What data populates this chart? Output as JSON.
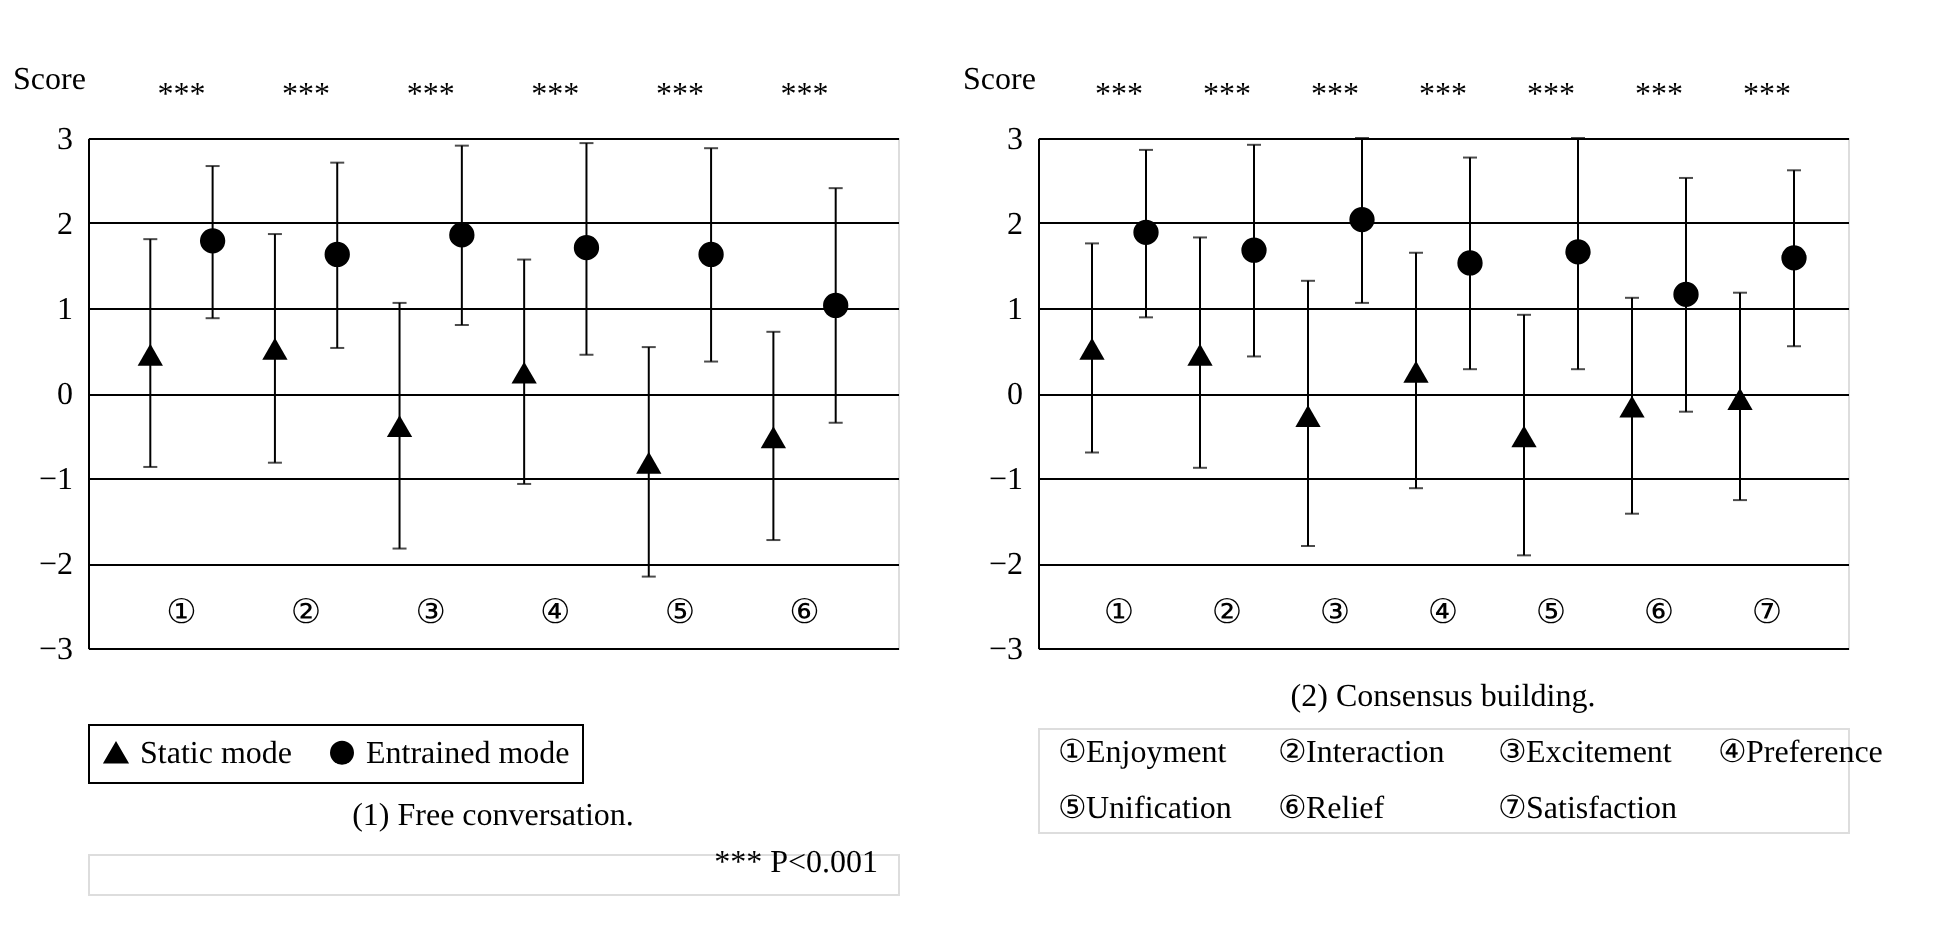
{
  "chart_data": [
    {
      "type": "scatter",
      "title": "(1) Free conversation.",
      "ylabel": "Score",
      "categories": [
        "①",
        "②",
        "③",
        "④",
        "⑤",
        "⑥"
      ],
      "ylim": [
        -3,
        3
      ],
      "yticks": [
        -3,
        -2,
        -1,
        0,
        1,
        2,
        3
      ],
      "grid": "y",
      "legend": "bottom",
      "series": [
        {
          "name": "Static mode",
          "color": "#000000",
          "marker": "triangle",
          "values": [
            0.45,
            0.52,
            -0.39,
            0.24,
            -0.82,
            -0.52
          ],
          "errors": [
            [
              -0.87,
              1.81
            ],
            [
              -0.82,
              1.87
            ],
            [
              -1.83,
              1.06
            ],
            [
              -1.07,
              1.57
            ],
            [
              -2.16,
              0.54
            ],
            [
              -1.73,
              0.72
            ]
          ]
        },
        {
          "name": "Entrained mode",
          "color": "#000000",
          "marker": "circle",
          "values": [
            1.79,
            1.63,
            1.86,
            1.71,
            1.63,
            1.03
          ],
          "errors": [
            [
              0.88,
              2.67
            ],
            [
              0.53,
              2.71
            ],
            [
              0.8,
              2.91
            ],
            [
              0.45,
              2.94
            ],
            [
              0.37,
              2.88
            ],
            [
              -0.35,
              2.41
            ]
          ]
        }
      ],
      "annotations": [
        "***",
        "***",
        "***",
        "***",
        "***",
        "***",
        "*** P<0.001"
      ]
    },
    {
      "type": "scatter",
      "title": "(2) Consensus building.",
      "ylabel": "Score",
      "categories": [
        "①",
        "②",
        "③",
        "④",
        "⑤",
        "⑥",
        "⑦"
      ],
      "ylim": [
        -3,
        3
      ],
      "yticks": [
        -3,
        -2,
        -1,
        0,
        1,
        2,
        3
      ],
      "grid": "y",
      "series": [
        {
          "color": "#000000",
          "marker": "triangle",
          "values": [
            0.52,
            0.45,
            -0.27,
            0.25,
            -0.51,
            -0.16,
            -0.07
          ],
          "errors": [
            [
              -0.7,
              1.76
            ],
            [
              -0.88,
              1.83
            ],
            [
              -1.8,
              1.32
            ],
            [
              -1.12,
              1.65
            ],
            [
              -1.91,
              0.92
            ],
            [
              -1.42,
              1.12
            ],
            [
              -1.26,
              1.18
            ]
          ]
        },
        {
          "color": "#000000",
          "marker": "circle",
          "values": [
            1.89,
            1.68,
            2.04,
            1.53,
            1.66,
            1.16,
            1.59
          ],
          "errors": [
            [
              0.89,
              2.86
            ],
            [
              0.43,
              2.92
            ],
            [
              1.06,
              3.0
            ],
            [
              0.28,
              2.77
            ],
            [
              0.28,
              3.0
            ],
            [
              -0.22,
              2.53
            ],
            [
              0.55,
              2.62
            ]
          ]
        }
      ],
      "annotations": [
        "***",
        "***",
        "***",
        "***",
        "***",
        "***",
        "***",
        "①Enjoyment",
        "②Interaction",
        "③Excitement",
        "④Preference",
        "⑤Unification",
        "⑥Relief",
        "⑦Satisfaction"
      ]
    }
  ]
}
